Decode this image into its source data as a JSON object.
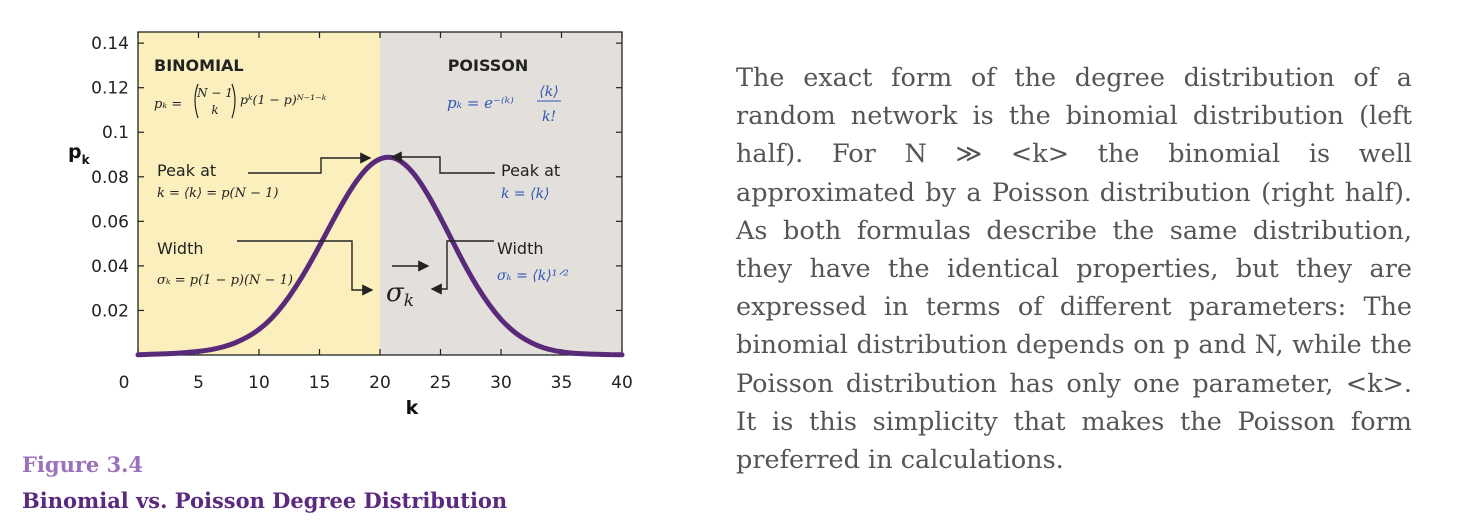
{
  "chart_data": {
    "type": "line",
    "x": [
      0,
      1,
      2,
      3,
      4,
      5,
      6,
      7,
      8,
      9,
      10,
      11,
      12,
      13,
      14,
      15,
      16,
      17,
      18,
      19,
      20,
      21,
      22,
      23,
      24,
      25,
      26,
      27,
      28,
      29,
      30,
      31,
      32,
      33,
      34,
      35,
      36,
      37,
      38,
      39,
      40
    ],
    "series": [
      {
        "values": [
          0.0001,
          0.0003,
          0.0005,
          0.0007,
          0.0011,
          0.0016,
          0.0024,
          0.0036,
          0.0054,
          0.008,
          0.0115,
          0.0163,
          0.0226,
          0.0303,
          0.0392,
          0.049,
          0.0592,
          0.069,
          0.0776,
          0.0842,
          0.088,
          0.0886,
          0.0858,
          0.0799,
          0.0715,
          0.0616,
          0.051,
          0.0405,
          0.031,
          0.0228,
          0.016,
          0.0108,
          0.007,
          0.0043,
          0.0025,
          0.0014,
          0.0008,
          0.0005,
          0.0003,
          0.0002,
          0.0001
        ]
      }
    ],
    "xlabel": "k",
    "ylabel": "p",
    "ylabel_sub": "k",
    "xlim": [
      0,
      40
    ],
    "ylim": [
      0,
      0.145
    ],
    "xticks": [
      "0",
      "5",
      "10",
      "15",
      "20",
      "25",
      "30",
      "35",
      "40"
    ],
    "yticks": [
      "0.02",
      "0.04",
      "0.06",
      "0.08",
      "0.1",
      "0.12",
      "0.14"
    ],
    "regions": [
      {
        "label": "BINOMIAL",
        "from": 0,
        "to": 20,
        "color": "#fbf0bd"
      },
      {
        "label": "POISSON",
        "from": 20,
        "to": 40,
        "color": "#e3dfdb"
      }
    ],
    "line_color": "#5a2a7a",
    "annotations": {
      "binom_formula_lhs": "pₖ =",
      "binom_binom_top": "N − 1",
      "binom_binom_bottom": "k",
      "binom_formula_rhs": "pᵏ(1 − p)ᴺ⁻¹⁻ᵏ",
      "pois_formula_lhs": "pₖ = e⁻⁽ᵏ⁾",
      "pois_frac_top": "⟨k⟩",
      "pois_frac_bottom": "k!",
      "peak_left_label": "Peak at",
      "peak_left_eq": "k = ⟨k⟩ = p(N − 1)",
      "peak_right_label": "Peak at",
      "peak_right_eq": "k = ⟨k⟩",
      "width_left_label": "Width",
      "width_left_eq": "σₖ = p(1 − p)(N − 1)",
      "width_right_label": "Width",
      "width_right_eq": "σₖ = ⟨k⟩¹ᐟ²",
      "sigma_center": "σ",
      "sigma_center_sub": "k"
    },
    "formula_color": "#2e56b8"
  },
  "figure": {
    "number": "Figure 3.4",
    "title": "Binomial vs. Poisson Degree Distribution"
  },
  "caption": {
    "text": "The exact form of the degree distribution of a random network is the binomial distribution (left half). For N ≫ <k> the binomial is well approximated by a Poisson distribution (right half). As both formulas describe the same distribution, they have the identical properties, but they are expressed in terms of different parameters: The binomial distribution depends on p and N, while the Poisson distribution has only one parameter, <k>. It is this simplicity that makes the Poisson form preferred in calculations."
  }
}
